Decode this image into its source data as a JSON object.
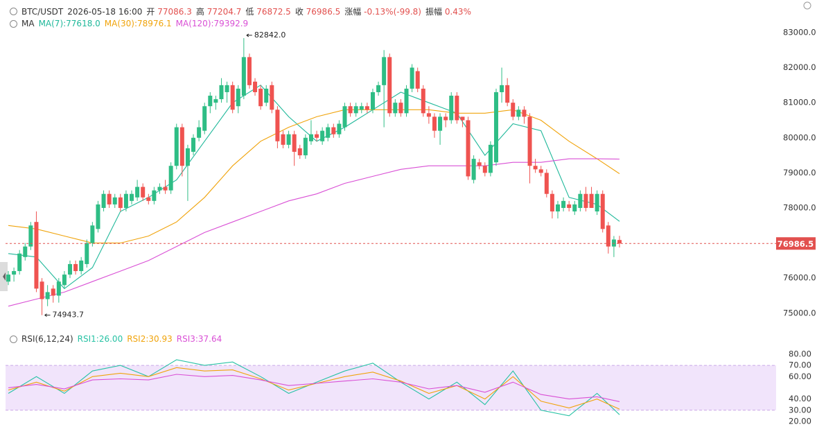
{
  "header": {
    "symbol": "BTC/USDT",
    "time": "2026-05-18 16:00",
    "open_label": "开",
    "high_label": "高",
    "low_label": "低",
    "close_label": "收",
    "change_label": "涨幅",
    "change": "-0.13%(-99.8)",
    "amplitude_label": "振幅",
    "amplitude": "0.43%"
  },
  "chart_data": [
    {
      "type": "candlestick",
      "indicator": "MA",
      "up_color": "#2ebd85",
      "down_color": "#ef5350",
      "candles": [
        [
          75900,
          76200,
          75800,
          76100
        ],
        [
          76100,
          76300,
          75900,
          76200
        ],
        [
          76200,
          76800,
          76100,
          76700
        ],
        [
          76600,
          77000,
          76500,
          76900
        ],
        [
          76900,
          77600,
          76800,
          77500
        ],
        [
          77600,
          77900,
          75600,
          75700
        ],
        [
          75900,
          76000,
          74943.7,
          75400
        ],
        [
          75400,
          75800,
          75200,
          75600
        ],
        [
          75700,
          75800,
          75300,
          75500
        ],
        [
          75500,
          76000,
          75300,
          75900
        ],
        [
          75800,
          76200,
          75700,
          76100
        ],
        [
          76100,
          76500,
          76000,
          76400
        ],
        [
          76400,
          76500,
          76100,
          76200
        ],
        [
          76200,
          76600,
          76100,
          76500
        ],
        [
          76400,
          77100,
          76300,
          77000
        ],
        [
          77000,
          77600,
          76900,
          77500
        ],
        [
          77400,
          78200,
          77300,
          78100
        ],
        [
          78000,
          78500,
          77900,
          78400
        ],
        [
          78400,
          78500,
          78000,
          78100
        ],
        [
          78100,
          78400,
          78000,
          78300
        ],
        [
          78300,
          78400,
          77900,
          78000
        ],
        [
          78000,
          78500,
          77900,
          78400
        ],
        [
          78200,
          78500,
          78100,
          78400
        ],
        [
          78300,
          78800,
          78200,
          78600
        ],
        [
          78600,
          78700,
          78200,
          78300
        ],
        [
          78300,
          78400,
          78100,
          78200
        ],
        [
          78200,
          78600,
          78100,
          78500
        ],
        [
          78500,
          78700,
          78400,
          78600
        ],
        [
          78600,
          78800,
          78400,
          78500
        ],
        [
          78500,
          79300,
          78400,
          79200
        ],
        [
          79200,
          80400,
          79100,
          80300
        ],
        [
          80300,
          80400,
          78900,
          79200
        ],
        [
          79200,
          79800,
          78200,
          79700
        ],
        [
          79600,
          80100,
          79500,
          80000
        ],
        [
          80000,
          80500,
          79900,
          80300
        ],
        [
          80200,
          81000,
          80100,
          80900
        ],
        [
          80900,
          81300,
          80700,
          81200
        ],
        [
          81000,
          81200,
          80800,
          81100
        ],
        [
          81100,
          81700,
          81000,
          81500
        ],
        [
          81300,
          81600,
          81000,
          81500
        ],
        [
          81500,
          81600,
          80700,
          80800
        ],
        [
          80900,
          81500,
          80700,
          81400
        ],
        [
          81200,
          82842,
          81100,
          82300
        ],
        [
          82300,
          82400,
          81400,
          81500
        ],
        [
          81600,
          81700,
          81200,
          81300
        ],
        [
          81400,
          81500,
          80800,
          80900
        ],
        [
          81000,
          81500,
          80900,
          81400
        ],
        [
          81500,
          81600,
          80700,
          80800
        ],
        [
          80800,
          80900,
          79700,
          79900
        ],
        [
          80100,
          80200,
          79700,
          79800
        ],
        [
          79800,
          80200,
          79700,
          80100
        ],
        [
          80100,
          80200,
          79200,
          79600
        ],
        [
          79700,
          79800,
          79400,
          79500
        ],
        [
          79500,
          80100,
          79400,
          80000
        ],
        [
          79900,
          80500,
          79800,
          80100
        ],
        [
          80100,
          80200,
          79900,
          80000
        ],
        [
          79900,
          80300,
          79800,
          80200
        ],
        [
          80000,
          80400,
          79900,
          80300
        ],
        [
          80300,
          80400,
          80000,
          80100
        ],
        [
          80100,
          80500,
          80000,
          80400
        ],
        [
          80300,
          81000,
          80200,
          80900
        ],
        [
          80900,
          81000,
          80600,
          80700
        ],
        [
          80700,
          81000,
          80600,
          80900
        ],
        [
          80800,
          81000,
          80700,
          80900
        ],
        [
          80900,
          81000,
          80700,
          80800
        ],
        [
          80800,
          81400,
          80700,
          81300
        ],
        [
          81300,
          81600,
          81200,
          81500
        ],
        [
          81500,
          82500,
          80300,
          82300
        ],
        [
          82300,
          82400,
          80600,
          80700
        ],
        [
          80700,
          81100,
          80600,
          81000
        ],
        [
          81000,
          81100,
          80600,
          80700
        ],
        [
          80700,
          81500,
          80600,
          81400
        ],
        [
          81400,
          82100,
          81300,
          82000
        ],
        [
          81900,
          82000,
          81300,
          81400
        ],
        [
          81400,
          81500,
          80600,
          80700
        ],
        [
          80700,
          80900,
          80400,
          80600
        ],
        [
          80600,
          80700,
          80000,
          80200
        ],
        [
          80200,
          80700,
          79800,
          80600
        ],
        [
          80600,
          80700,
          80300,
          80500
        ],
        [
          80500,
          81300,
          80400,
          81200
        ],
        [
          81200,
          81300,
          80400,
          80500
        ],
        [
          80600,
          80600,
          80300,
          80500
        ],
        [
          80500,
          80600,
          78800,
          78900
        ],
        [
          78800,
          79500,
          78700,
          79400
        ],
        [
          79300,
          79400,
          79100,
          79200
        ],
        [
          79200,
          79300,
          78900,
          79000
        ],
        [
          79000,
          79900,
          78900,
          79800
        ],
        [
          79300,
          81400,
          79200,
          81300
        ],
        [
          81300,
          82000,
          81000,
          81500
        ],
        [
          81500,
          81700,
          80900,
          81000
        ],
        [
          81000,
          81100,
          80500,
          80600
        ],
        [
          80600,
          80900,
          80500,
          80800
        ],
        [
          80800,
          80900,
          80400,
          80600
        ],
        [
          80600,
          80700,
          78700,
          79200
        ],
        [
          79200,
          79400,
          79000,
          79100
        ],
        [
          79100,
          79200,
          78900,
          79000
        ],
        [
          79000,
          79100,
          78300,
          78400
        ],
        [
          78400,
          78500,
          77700,
          77900
        ],
        [
          77900,
          78200,
          77700,
          78100
        ],
        [
          78000,
          78300,
          77900,
          78200
        ],
        [
          78100,
          78200,
          77900,
          78000
        ],
        [
          77900,
          78200,
          77800,
          78100
        ],
        [
          78000,
          78500,
          77900,
          78400
        ],
        [
          78400,
          78600,
          77900,
          78000
        ],
        [
          78400,
          78600,
          78000,
          78000
        ],
        [
          77900,
          78500,
          77800,
          78400
        ],
        [
          78400,
          78500,
          77300,
          77400
        ],
        [
          77500,
          77600,
          76700,
          76900
        ],
        [
          76900,
          77200,
          76600,
          77100
        ],
        [
          77086.3,
          77204.7,
          76872.5,
          76986.5
        ]
      ],
      "ylim": [
        74640,
        83730
      ],
      "yticks": [
        {
          "value": 75000,
          "label": "75000.0"
        },
        {
          "value": 76000,
          "label": "76000.0"
        },
        {
          "value": 77000,
          "label": "77000.0"
        },
        {
          "value": 78000,
          "label": "78000.0"
        },
        {
          "value": 79000,
          "label": "79000.0"
        },
        {
          "value": 80000,
          "label": "80000.0"
        },
        {
          "value": 81000,
          "label": "81000.0"
        },
        {
          "value": 82000,
          "label": "82000.0"
        },
        {
          "value": 83000,
          "label": "83000.0"
        }
      ],
      "line_x": [
        0,
        5,
        10,
        15,
        20,
        25,
        30,
        35,
        40,
        45,
        50,
        55,
        60,
        65,
        70,
        75,
        80,
        85,
        90,
        95,
        100,
        105,
        109
      ],
      "series": [
        {
          "name": "MA(7):77618.0",
          "color": "#1fb89a",
          "values": [
            76700,
            76600,
            75700,
            76300,
            77900,
            78300,
            78800,
            79900,
            81000,
            81500,
            80600,
            79900,
            80300,
            80800,
            81300,
            81000,
            80700,
            79500,
            80400,
            80200,
            78300,
            78100,
            77618
          ]
        },
        {
          "name": "MA(30):78976.1",
          "color": "#f0a30a",
          "values": [
            77500,
            77400,
            77200,
            77000,
            77000,
            77200,
            77600,
            78300,
            79200,
            79900,
            80300,
            80600,
            80800,
            80800,
            80800,
            80800,
            80700,
            80700,
            80800,
            80500,
            79900,
            79400,
            78976.1
          ]
        },
        {
          "name": "MA(120):79392.9",
          "color": "#d94fd5",
          "values": [
            75200,
            75400,
            75600,
            75900,
            76200,
            76500,
            76900,
            77300,
            77600,
            77900,
            78200,
            78400,
            78700,
            78900,
            79100,
            79200,
            79200,
            79200,
            79300,
            79300,
            79400,
            79400,
            79392.9
          ]
        }
      ],
      "max_label": "82842.0",
      "min_label": "74943.7",
      "last_price_color": "#e2504e"
    },
    {
      "type": "line",
      "title": "RSI(6,12,24)",
      "x": [
        0,
        5,
        10,
        15,
        20,
        25,
        30,
        35,
        40,
        45,
        50,
        55,
        60,
        65,
        70,
        75,
        80,
        85,
        90,
        95,
        100,
        105,
        109
      ],
      "series": [
        {
          "name": "RSI1:26.00",
          "color": "#26c2a4",
          "values": [
            45,
            60,
            45,
            65,
            70,
            60,
            75,
            70,
            73,
            60,
            45,
            55,
            65,
            72,
            55,
            40,
            55,
            35,
            65,
            30,
            25,
            45,
            26
          ]
        },
        {
          "name": "RSI2:30.93",
          "color": "#f0a30a",
          "values": [
            48,
            55,
            47,
            60,
            63,
            60,
            68,
            65,
            66,
            58,
            48,
            54,
            60,
            64,
            56,
            45,
            52,
            40,
            60,
            38,
            32,
            40,
            30.93
          ]
        },
        {
          "name": "RSI3:37.64",
          "color": "#d94fd5",
          "values": [
            50,
            53,
            49,
            57,
            58,
            57,
            62,
            60,
            61,
            57,
            52,
            54,
            56,
            58,
            55,
            49,
            52,
            46,
            55,
            44,
            40,
            42,
            37.64
          ]
        }
      ],
      "ylim": [
        15,
        88
      ],
      "yticks": [
        {
          "value": 20,
          "label": "20.00"
        },
        {
          "value": 30,
          "label": "30.00"
        },
        {
          "value": 40,
          "label": "40.00"
        },
        {
          "value": 60,
          "label": "60.00"
        },
        {
          "value": 70,
          "label": "70.00"
        },
        {
          "value": 80,
          "label": "80.00"
        }
      ],
      "band": [
        30,
        70
      ],
      "band_color": "#f1e4fb"
    }
  ]
}
